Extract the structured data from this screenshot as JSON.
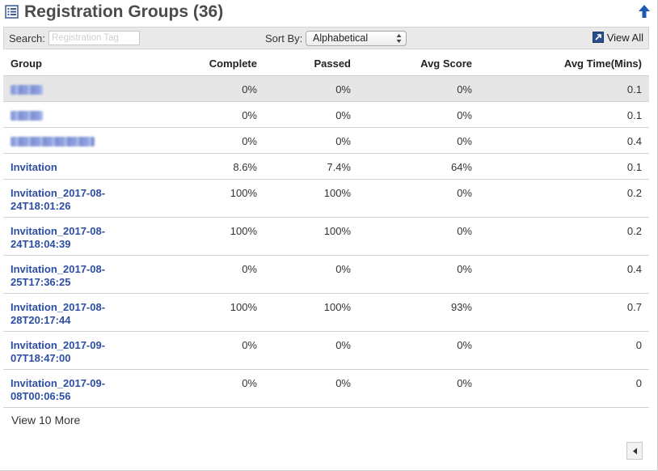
{
  "header": {
    "title": "Registration Groups (36)",
    "icon": "list-icon",
    "collapse_icon": "arrow-up-icon"
  },
  "toolbar": {
    "search_label": "Search:",
    "search_placeholder": "Registration Tag",
    "search_value": "",
    "sort_label": "Sort By:",
    "sort_value": "Alphabetical",
    "view_all_label": "View All",
    "view_all_icon": "expand-icon"
  },
  "table": {
    "columns": [
      "Group",
      "Complete",
      "Passed",
      "Avg Score",
      "Avg Time(Mins)"
    ],
    "rows": [
      {
        "group": "",
        "complete": "0%",
        "passed": "0%",
        "avg_score": "0%",
        "avg_time": "0.1"
      },
      {
        "group": "",
        "complete": "0%",
        "passed": "0%",
        "avg_score": "0%",
        "avg_time": "0.1"
      },
      {
        "group": "",
        "complete": "0%",
        "passed": "0%",
        "avg_score": "0%",
        "avg_time": "0.4"
      },
      {
        "group": "Invitation",
        "complete": "8.6%",
        "passed": "7.4%",
        "avg_score": "64%",
        "avg_time": "0.1"
      },
      {
        "group": "Invitation_2017-08-24T18:01:26",
        "complete": "100%",
        "passed": "100%",
        "avg_score": "0%",
        "avg_time": "0.2"
      },
      {
        "group": "Invitation_2017-08-24T18:04:39",
        "complete": "100%",
        "passed": "100%",
        "avg_score": "0%",
        "avg_time": "0.2"
      },
      {
        "group": "Invitation_2017-08-25T17:36:25",
        "complete": "0%",
        "passed": "0%",
        "avg_score": "0%",
        "avg_time": "0.4"
      },
      {
        "group": "Invitation_2017-08-28T20:17:44",
        "complete": "100%",
        "passed": "100%",
        "avg_score": "93%",
        "avg_time": "0.7"
      },
      {
        "group": "Invitation_2017-09-07T18:47:00",
        "complete": "0%",
        "passed": "0%",
        "avg_score": "0%",
        "avg_time": "0"
      },
      {
        "group": "Invitation_2017-09-08T00:06:56",
        "complete": "0%",
        "passed": "0%",
        "avg_score": "0%",
        "avg_time": "0"
      }
    ]
  },
  "footer": {
    "view_more_label": "View 10 More",
    "scroll_icon": "chevron-left-icon"
  },
  "colors": {
    "link": "#2c4ea3",
    "toolbar_bg": "#e9e9e9",
    "selected_row_bg": "#e6e6e6",
    "accent_blue": "#1f5ab0"
  }
}
